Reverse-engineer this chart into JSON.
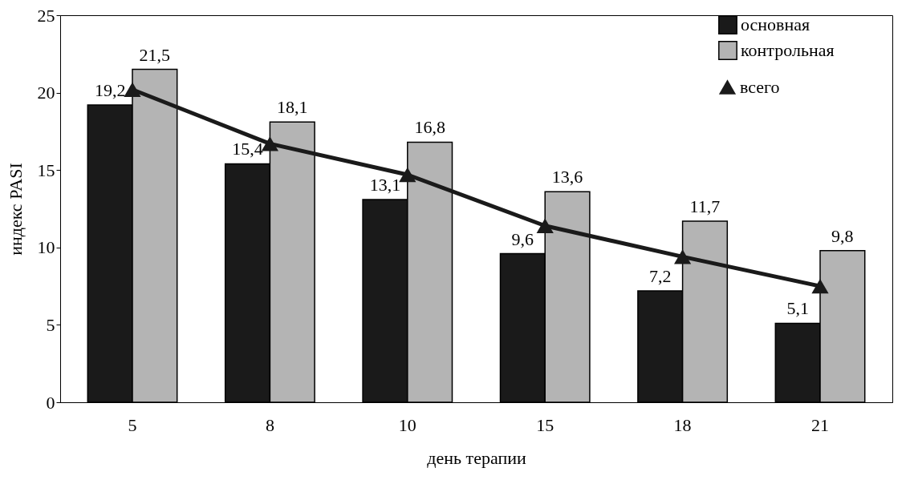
{
  "chart_data": {
    "type": "bar",
    "xlabel": "день терапии",
    "ylabel": "индекс PASI",
    "categories": [
      "5",
      "8",
      "10",
      "15",
      "18",
      "21"
    ],
    "series": [
      {
        "name": "основная",
        "type": "bar",
        "color": "#1a1a1a",
        "values": [
          19.2,
          15.4,
          13.1,
          9.6,
          7.2,
          5.1
        ],
        "value_labels": [
          "19,2",
          "15,4",
          "13,1",
          "9,6",
          "7,2",
          "5,1"
        ]
      },
      {
        "name": "контрольная",
        "type": "bar",
        "color": "#b4b4b4",
        "values": [
          21.5,
          18.1,
          16.8,
          13.6,
          11.7,
          9.8
        ],
        "value_labels": [
          "21,5",
          "18,1",
          "16,8",
          "13,6",
          "11,7",
          "9,8"
        ]
      },
      {
        "name": "всего",
        "type": "line",
        "color": "#1a1a1a",
        "marker": "triangle",
        "values": [
          20.2,
          16.7,
          14.7,
          11.4,
          9.4,
          7.5
        ]
      }
    ],
    "ylim": [
      0,
      25
    ],
    "yticks": [
      0,
      5,
      10,
      15,
      20,
      25
    ],
    "grid": false,
    "legend": "top right"
  }
}
